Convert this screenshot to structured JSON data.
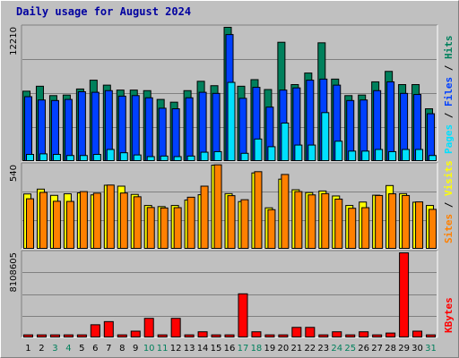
{
  "title": "Daily usage for August 2024",
  "colors": {
    "hits": "#00805c",
    "files": "#0040ff",
    "pages": "#00e0ff",
    "visits": "#ffff00",
    "sites": "#ff8000",
    "kbytes": "#ff0000",
    "weekend_day": "#00805c",
    "weekday": "#000000",
    "panel_bg": "#c0c0c0"
  },
  "chart_data": [
    {
      "type": "bar",
      "y_axis_label_parts": [
        "Pages",
        "Files",
        "Hits"
      ],
      "ymax_label": "12210",
      "ylim": [
        0,
        12210
      ],
      "x": [
        "1",
        "2",
        "3",
        "4",
        "5",
        "6",
        "7",
        "8",
        "9",
        "10",
        "11",
        "12",
        "13",
        "14",
        "15",
        "16",
        "17",
        "18",
        "19",
        "20",
        "21",
        "22",
        "23",
        "24",
        "25",
        "26",
        "27",
        "28",
        "29",
        "30",
        "31"
      ],
      "series": [
        {
          "name": "Hits",
          "values": [
            6400,
            6850,
            6000,
            6050,
            6600,
            7400,
            6950,
            6500,
            6500,
            6450,
            5650,
            5400,
            6450,
            7300,
            6900,
            12210,
            6850,
            7450,
            6550,
            10850,
            7000,
            8050,
            10800,
            7500,
            6000,
            6050,
            7250,
            8200,
            7000,
            7000,
            4800
          ]
        },
        {
          "name": "Files",
          "values": [
            5900,
            5600,
            5550,
            5650,
            6350,
            6300,
            6450,
            5950,
            6000,
            5800,
            4850,
            4800,
            5800,
            6300,
            6200,
            11550,
            5750,
            6750,
            4950,
            6500,
            6700,
            7400,
            7500,
            6950,
            5550,
            5600,
            6450,
            7250,
            6200,
            6100,
            4350
          ]
        },
        {
          "name": "Pages",
          "values": [
            650,
            700,
            650,
            550,
            550,
            650,
            1100,
            800,
            600,
            450,
            500,
            450,
            500,
            850,
            900,
            7200,
            750,
            2050,
            1350,
            3500,
            1500,
            1500,
            4450,
            1850,
            950,
            950,
            1100,
            900,
            1100,
            1100,
            550
          ]
        }
      ]
    },
    {
      "type": "bar",
      "y_axis_label_parts": [
        "Sites",
        "Visits"
      ],
      "ymax_label": "540",
      "ylim": [
        0,
        540
      ],
      "x": [
        "1",
        "2",
        "3",
        "4",
        "5",
        "6",
        "7",
        "8",
        "9",
        "10",
        "11",
        "12",
        "13",
        "14",
        "15",
        "16",
        "17",
        "18",
        "19",
        "20",
        "21",
        "22",
        "23",
        "24",
        "25",
        "26",
        "27",
        "28",
        "29",
        "30",
        "31"
      ],
      "series": [
        {
          "name": "Visits",
          "values": [
            355,
            386,
            346,
            356,
            362,
            349,
            411,
            405,
            352,
            281,
            274,
            281,
            316,
            350,
            540,
            357,
            306,
            490,
            266,
            450,
            382,
            364,
            374,
            342,
            281,
            303,
            347,
            409,
            357,
            302,
            281
          ]
        },
        {
          "name": "Sites",
          "values": [
            324,
            365,
            308,
            307,
            370,
            360,
            412,
            361,
            337,
            268,
            265,
            267,
            334,
            405,
            542,
            344,
            318,
            498,
            254,
            480,
            370,
            349,
            357,
            322,
            263,
            267,
            345,
            356,
            345,
            304,
            256
          ]
        }
      ]
    },
    {
      "type": "bar",
      "y_axis_label_parts": [
        "KBytes"
      ],
      "ymax_label": "8108605",
      "ylim": [
        0,
        8108605
      ],
      "x": [
        "1",
        "2",
        "3",
        "4",
        "5",
        "6",
        "7",
        "8",
        "9",
        "10",
        "11",
        "12",
        "13",
        "14",
        "15",
        "16",
        "17",
        "18",
        "19",
        "20",
        "21",
        "22",
        "23",
        "24",
        "25",
        "26",
        "27",
        "28",
        "29",
        "30",
        "31"
      ],
      "series": [
        {
          "name": "KBytes",
          "values": [
            285000,
            285000,
            285000,
            285000,
            285000,
            1250000,
            1550000,
            285000,
            640000,
            1860000,
            285000,
            1860000,
            285000,
            580000,
            285000,
            285000,
            4200000,
            580000,
            285000,
            285000,
            1000000,
            1000000,
            285000,
            580000,
            285000,
            580000,
            285000,
            460000,
            8108605,
            640000,
            285000
          ]
        }
      ]
    }
  ],
  "day_labels": [
    {
      "text": "1",
      "weekend": false
    },
    {
      "text": "2",
      "weekend": false
    },
    {
      "text": "3",
      "weekend": true
    },
    {
      "text": "4",
      "weekend": true
    },
    {
      "text": "5",
      "weekend": false
    },
    {
      "text": "6",
      "weekend": false
    },
    {
      "text": "7",
      "weekend": false
    },
    {
      "text": "8",
      "weekend": false
    },
    {
      "text": "9",
      "weekend": false
    },
    {
      "text": "10",
      "weekend": true
    },
    {
      "text": "11",
      "weekend": true
    },
    {
      "text": "12",
      "weekend": false
    },
    {
      "text": "13",
      "weekend": false
    },
    {
      "text": "14",
      "weekend": false
    },
    {
      "text": "15",
      "weekend": false
    },
    {
      "text": "16",
      "weekend": false
    },
    {
      "text": "17",
      "weekend": true
    },
    {
      "text": "18",
      "weekend": true
    },
    {
      "text": "19",
      "weekend": false
    },
    {
      "text": "20",
      "weekend": false
    },
    {
      "text": "21",
      "weekend": false
    },
    {
      "text": "22",
      "weekend": false
    },
    {
      "text": "23",
      "weekend": false
    },
    {
      "text": "24",
      "weekend": true
    },
    {
      "text": "25",
      "weekend": true
    },
    {
      "text": "26",
      "weekend": false
    },
    {
      "text": "27",
      "weekend": false
    },
    {
      "text": "28",
      "weekend": false
    },
    {
      "text": "29",
      "weekend": false
    },
    {
      "text": "30",
      "weekend": false
    },
    {
      "text": "31",
      "weekend": true
    }
  ]
}
